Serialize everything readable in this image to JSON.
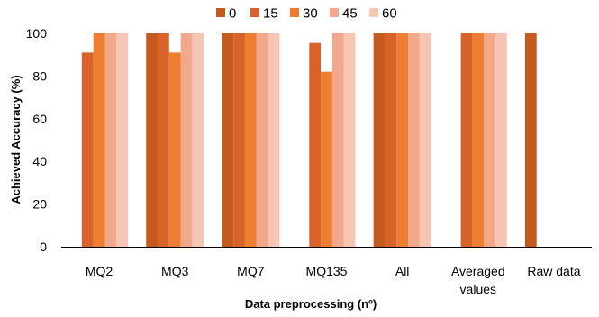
{
  "chart_data": {
    "type": "bar",
    "title": "",
    "xlabel": "Data preprocessing (nº)",
    "ylabel": "Achieved Accuracy (%)",
    "ylim": [
      0,
      100
    ],
    "yticks": [
      0,
      20,
      40,
      60,
      80,
      100
    ],
    "grid": false,
    "legend_position": "top",
    "categories": [
      {
        "lines": [
          "MQ2"
        ]
      },
      {
        "lines": [
          "MQ3"
        ]
      },
      {
        "lines": [
          "MQ7"
        ]
      },
      {
        "lines": [
          "MQ135"
        ]
      },
      {
        "lines": [
          "All"
        ]
      },
      {
        "lines": [
          "Averaged",
          "values"
        ]
      },
      {
        "lines": [
          "Raw data"
        ]
      }
    ],
    "series": [
      {
        "name": "0",
        "color": "#c55a1e",
        "values": [
          null,
          100,
          100,
          null,
          100,
          null,
          100
        ]
      },
      {
        "name": "15",
        "color": "#d9622a",
        "values": [
          91,
          100,
          100,
          95.5,
          100,
          100,
          null
        ]
      },
      {
        "name": "30",
        "color": "#ed7d31",
        "values": [
          100,
          91,
          100,
          82,
          100,
          100,
          null
        ]
      },
      {
        "name": "45",
        "color": "#f2a88b",
        "values": [
          100,
          100,
          100,
          100,
          100,
          100,
          null
        ]
      },
      {
        "name": "60",
        "color": "#f6c5b3",
        "values": [
          100,
          100,
          100,
          100,
          100,
          100,
          null
        ]
      }
    ]
  }
}
